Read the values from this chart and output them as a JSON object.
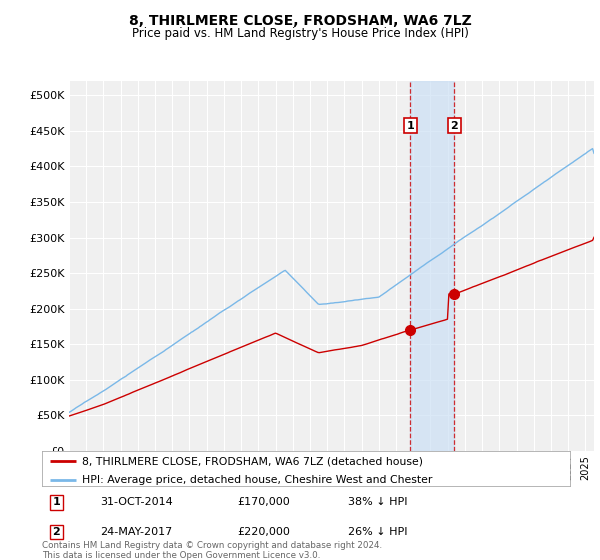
{
  "title": "8, THIRLMERE CLOSE, FRODSHAM, WA6 7LZ",
  "subtitle": "Price paid vs. HM Land Registry's House Price Index (HPI)",
  "ylabel_ticks": [
    "£0",
    "£50K",
    "£100K",
    "£150K",
    "£200K",
    "£250K",
    "£300K",
    "£350K",
    "£400K",
    "£450K",
    "£500K"
  ],
  "ytick_vals": [
    0,
    50000,
    100000,
    150000,
    200000,
    250000,
    300000,
    350000,
    400000,
    450000,
    500000
  ],
  "ylim": [
    0,
    520000
  ],
  "xlim_start": 1995.0,
  "xlim_end": 2025.5,
  "hpi_color": "#7ab8e8",
  "price_color": "#cc0000",
  "sale1_date": 2014.83,
  "sale1_price": 170000,
  "sale2_date": 2017.39,
  "sale2_price": 220000,
  "sale1_text": "31-OCT-2014",
  "sale1_amount": "£170,000",
  "sale1_pct": "38% ↓ HPI",
  "sale2_text": "24-MAY-2017",
  "sale2_amount": "£220,000",
  "sale2_pct": "26% ↓ HPI",
  "legend_price_label": "8, THIRLMERE CLOSE, FRODSHAM, WA6 7LZ (detached house)",
  "legend_hpi_label": "HPI: Average price, detached house, Cheshire West and Chester",
  "footnote": "Contains HM Land Registry data © Crown copyright and database right 2024.\nThis data is licensed under the Open Government Licence v3.0.",
  "bg_color": "#ffffff",
  "plot_bg_color": "#f0f0f0",
  "grid_color": "#ffffff",
  "shaded_region_color": "#cce0f5"
}
